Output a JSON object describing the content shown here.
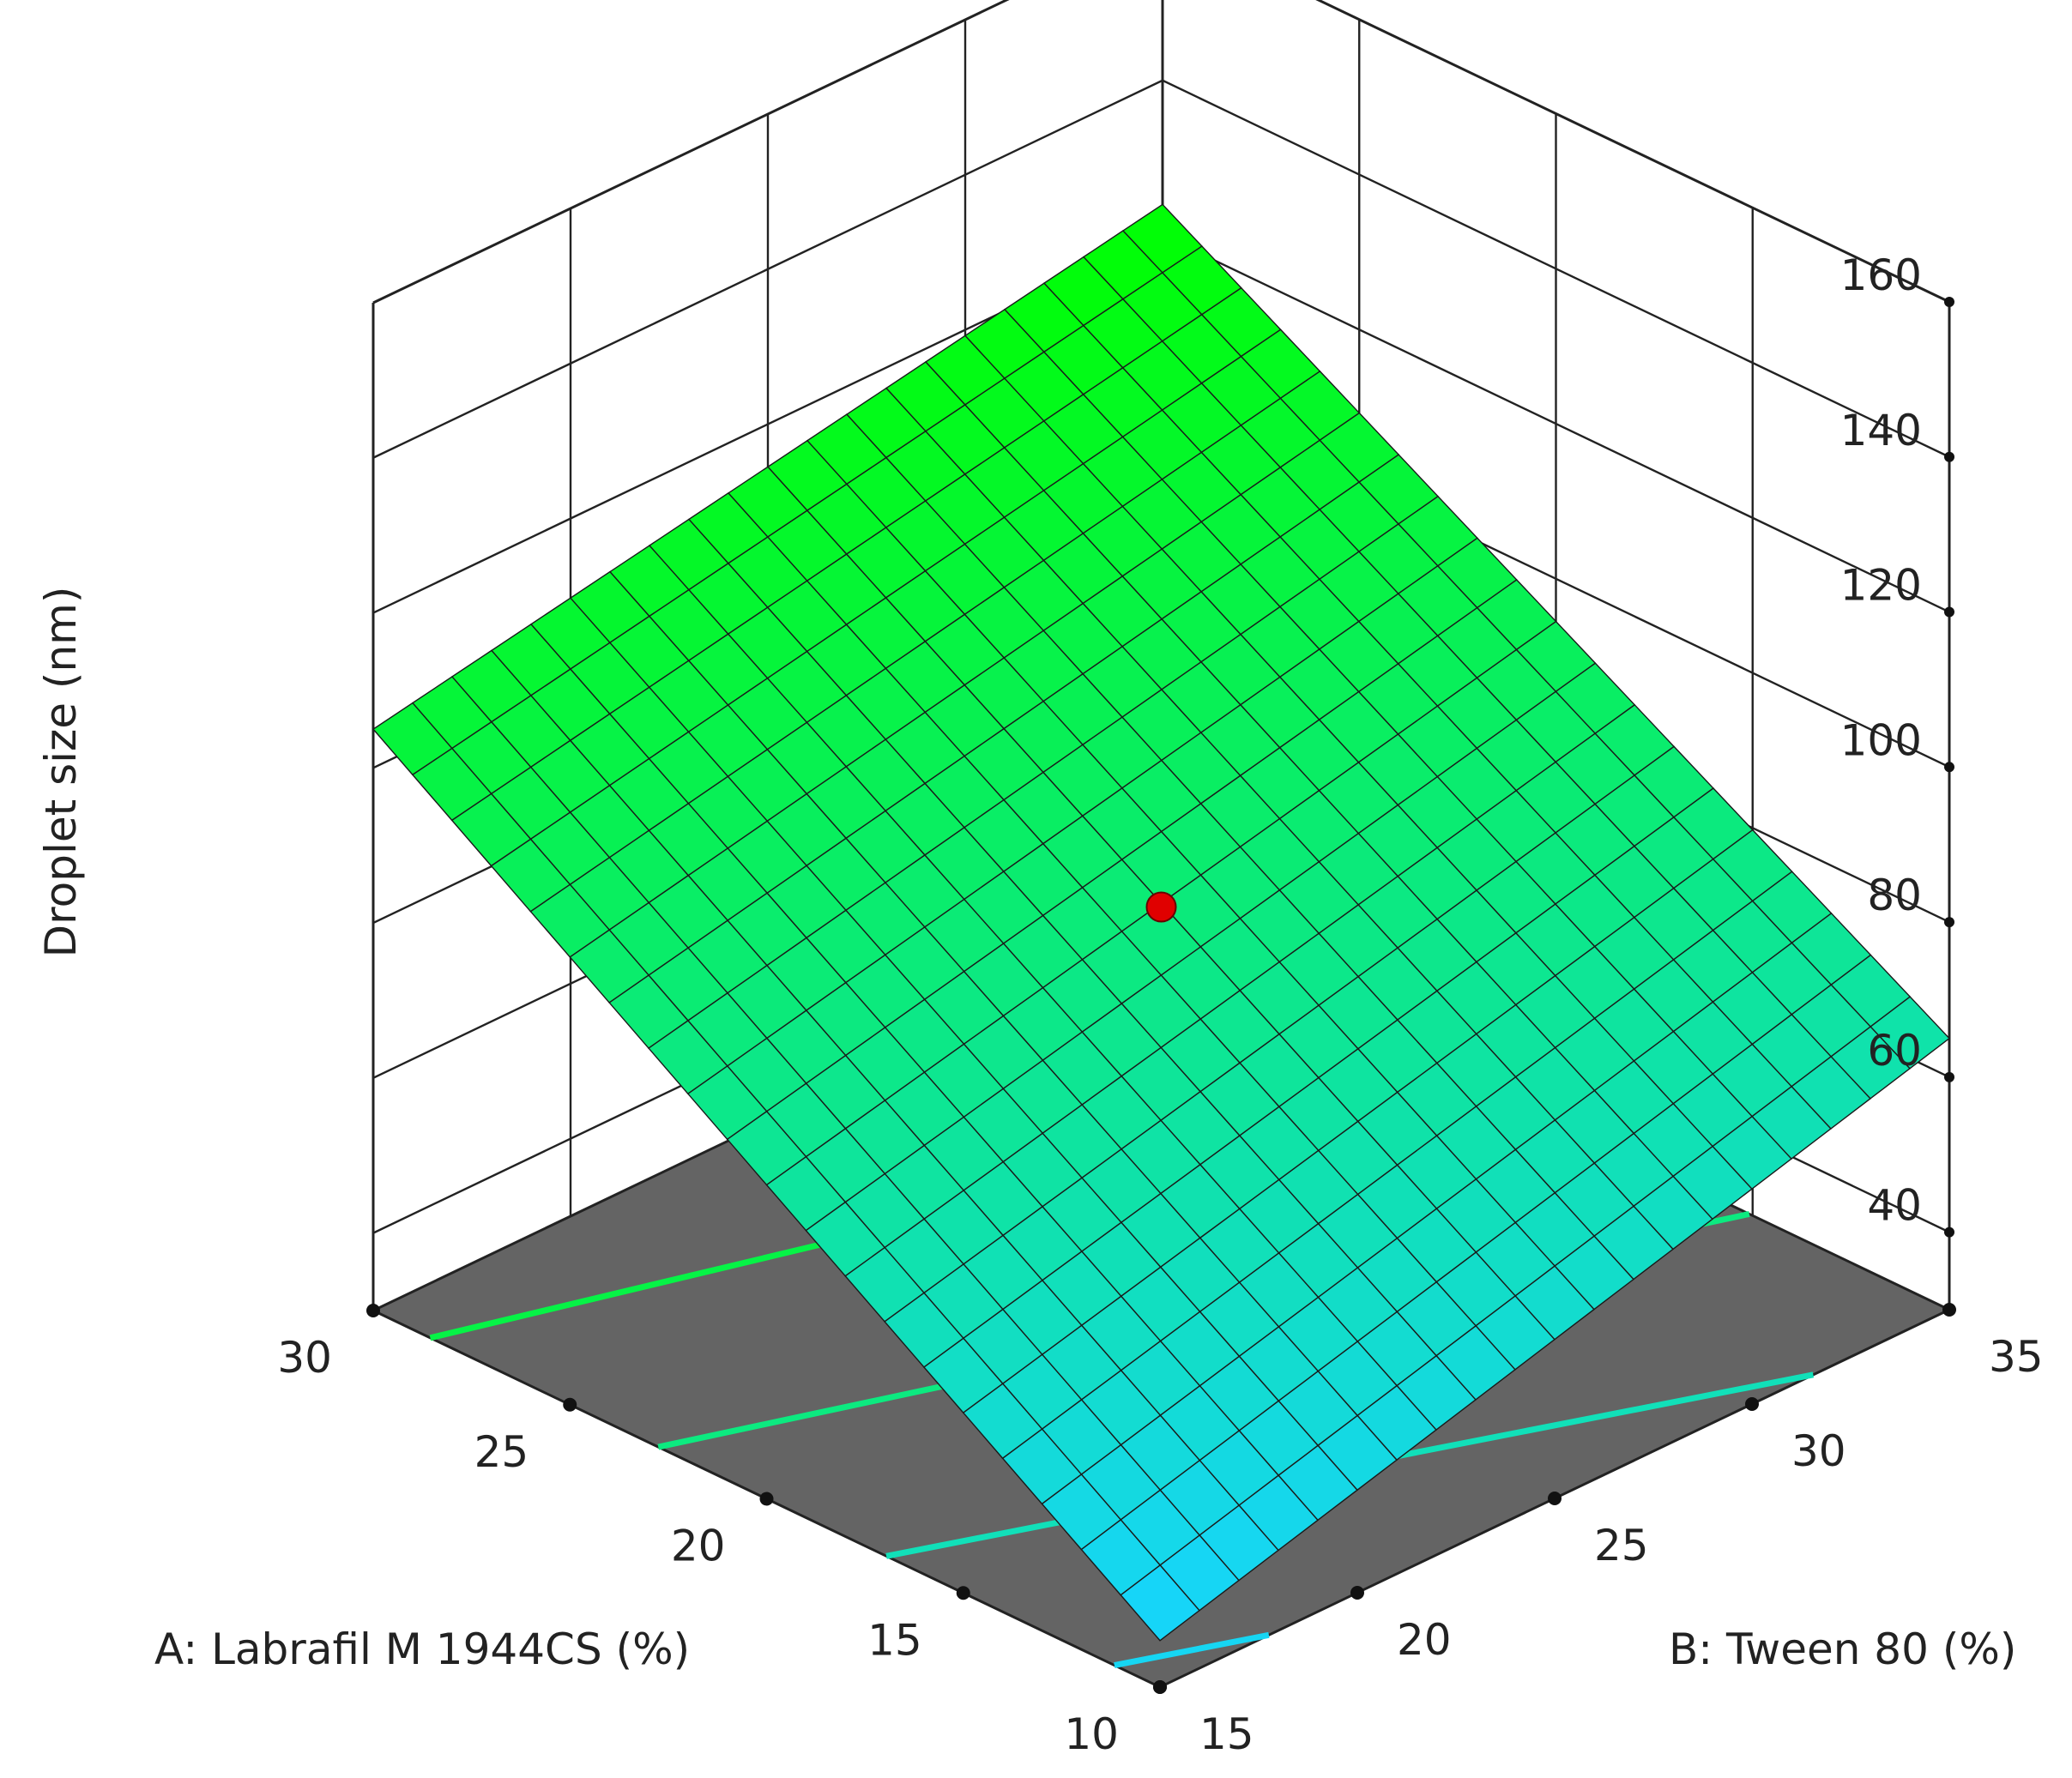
{
  "chart_data": {
    "type": "surface3d",
    "title": "",
    "xlabel": "A: Labrafil M 1944CS (%)",
    "ylabel": "B: Tween 80 (%)",
    "zlabel": "Droplet size (nm)",
    "x_range": [
      10,
      30
    ],
    "y_range": [
      15,
      35
    ],
    "z_range": [
      30,
      160
    ],
    "x_ticks": [
      10,
      15,
      20,
      25,
      30
    ],
    "y_ticks": [
      15,
      20,
      25,
      30,
      35
    ],
    "z_ticks": [
      40,
      60,
      80,
      100,
      120,
      140,
      160
    ],
    "x_tick_labels": [
      "10",
      "15",
      "20",
      "25",
      "30"
    ],
    "y_tick_labels": [
      "15",
      "20",
      "25",
      "30",
      "35"
    ],
    "z_tick_labels": [
      "40",
      "60",
      "80",
      "100",
      "120",
      "140",
      "160"
    ],
    "surface": {
      "model": "linear",
      "corners": [
        {
          "x": 10,
          "y": 15,
          "z": 36
        },
        {
          "x": 30,
          "y": 15,
          "z": 105
        },
        {
          "x": 10,
          "y": 35,
          "z": 65
        },
        {
          "x": 30,
          "y": 35,
          "z": 124
        }
      ],
      "grid_divisions": 20,
      "colormap": [
        "#17d4ff",
        "#00ff00"
      ]
    },
    "design_point": {
      "x": 20,
      "y": 25,
      "z": 82
    },
    "contours": [
      {
        "x": 10,
        "y": 15,
        "x2": 30,
        "y2": 35,
        "level": 1
      },
      {
        "x": 10,
        "y": 15,
        "x2": 30,
        "y2": 35,
        "level": 2
      }
    ],
    "floor_color": "#646464",
    "grid": true
  }
}
